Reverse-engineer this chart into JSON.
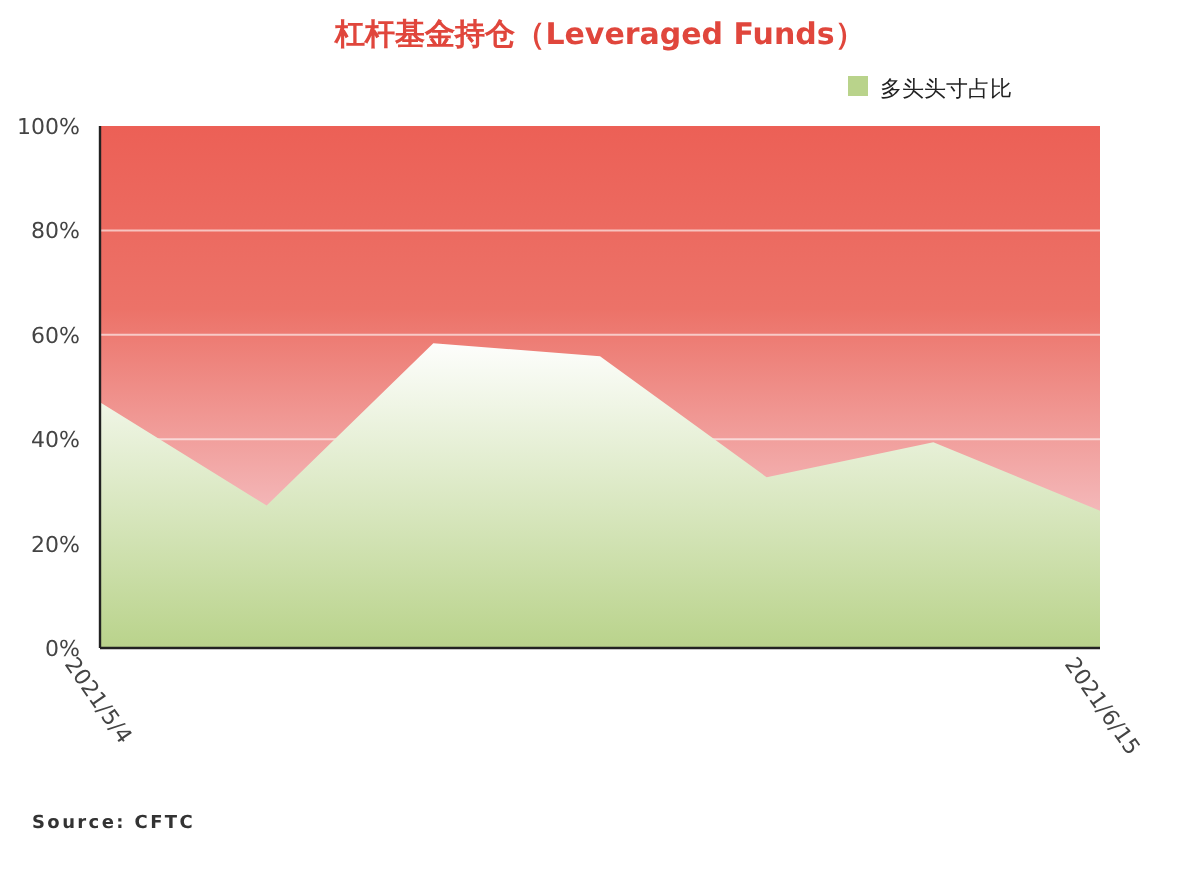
{
  "chart_data": {
    "type": "area",
    "title": "杠杆基金持仓（Leveraged Funds）",
    "x": [
      "2021-05-04",
      "2021-05-11",
      "2021-05-18",
      "2021-05-25",
      "2021-06-01",
      "2021-06-08",
      "2021-06-15"
    ],
    "xlim": [
      "2021-05-04",
      "2021-06-15"
    ],
    "xticks": [
      {
        "value": "2021-05-04",
        "label": "2021/5/4"
      },
      {
        "value": "2021-06-15",
        "label": "2021/6/15"
      }
    ],
    "series": [
      {
        "name": "多头头寸占比",
        "color": "#b9d38b",
        "values": [
          47.1,
          27.3,
          58.4,
          55.9,
          32.7,
          39.4,
          26.3
        ]
      }
    ],
    "ylim": [
      0,
      100
    ],
    "yticks": [
      {
        "value": 0,
        "label": "0%"
      },
      {
        "value": 20,
        "label": "20%"
      },
      {
        "value": 40,
        "label": "40%"
      },
      {
        "value": 60,
        "label": "60%"
      },
      {
        "value": 80,
        "label": "80%"
      },
      {
        "value": 100,
        "label": "100%"
      }
    ],
    "grid": "y",
    "legend": "top right",
    "annotations": [
      "Source: CFTC"
    ]
  }
}
